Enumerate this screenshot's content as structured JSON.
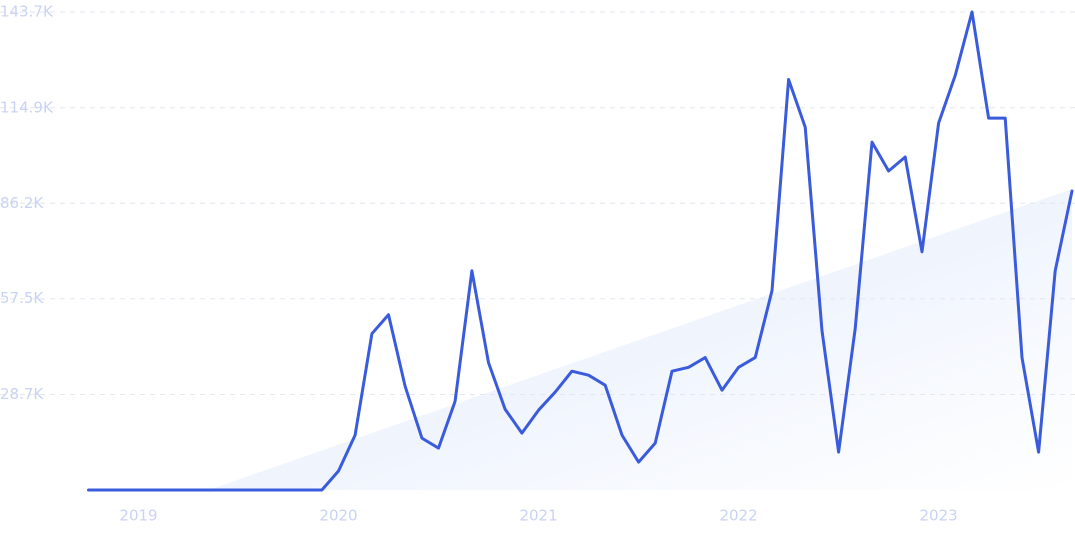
{
  "chart_data": {
    "type": "line",
    "x": [
      2018.75,
      2018.833,
      2018.917,
      2019,
      2019.083,
      2019.167,
      2019.25,
      2019.333,
      2019.417,
      2019.5,
      2019.583,
      2019.667,
      2019.75,
      2019.833,
      2019.917,
      2020,
      2020.083,
      2020.167,
      2020.25,
      2020.333,
      2020.417,
      2020.5,
      2020.583,
      2020.667,
      2020.75,
      2020.833,
      2020.917,
      2021,
      2021.083,
      2021.167,
      2021.25,
      2021.333,
      2021.417,
      2021.5,
      2021.583,
      2021.667,
      2021.75,
      2021.833,
      2021.917,
      2022,
      2022.083,
      2022.167,
      2022.25,
      2022.333,
      2022.417,
      2022.5,
      2022.583,
      2022.667,
      2022.75,
      2022.833,
      2022.917,
      2023,
      2023.083,
      2023.167,
      2023.25,
      2023.333,
      2023.417,
      2023.5,
      2023.583,
      2023.667
    ],
    "values": [
      0,
      0,
      0,
      0,
      0,
      0,
      0,
      0,
      0,
      0,
      0,
      0,
      0,
      0,
      0,
      5700,
      16500,
      47000,
      52700,
      31200,
      15600,
      12600,
      26700,
      65900,
      38300,
      24300,
      17100,
      24000,
      29400,
      35700,
      34500,
      31500,
      16500,
      8400,
      14100,
      35700,
      36900,
      39800,
      30000,
      36900,
      39800,
      59900,
      123400,
      109100,
      47900,
      11400,
      48500,
      104600,
      95900,
      100100,
      71600,
      110300,
      124600,
      143700,
      111800,
      111800,
      39800,
      11400,
      65900,
      89900
    ],
    "color": "#3a5bdc",
    "trend": {
      "x": [
        2019.35,
        2023.667
      ],
      "values": [
        0,
        90500
      ],
      "color": "#dce8fb"
    },
    "xlim": [
      2018.75,
      2023.667
    ],
    "xticks": [
      2019,
      2020,
      2021,
      2022,
      2023
    ],
    "ylim": [
      0,
      143700
    ],
    "yticks": [
      {
        "value": 28700,
        "label": "28.7K"
      },
      {
        "value": 57500,
        "label": "57.5K"
      },
      {
        "value": 86200,
        "label": "86.2K"
      },
      {
        "value": 114900,
        "label": "114.9K"
      },
      {
        "value": 143700,
        "label": "143.7K"
      }
    ],
    "grid": true
  }
}
